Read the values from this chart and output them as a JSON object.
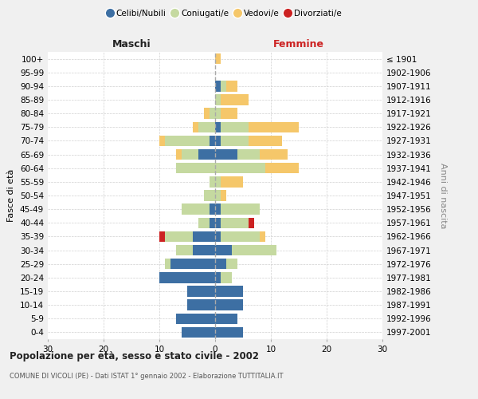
{
  "age_groups": [
    "0-4",
    "5-9",
    "10-14",
    "15-19",
    "20-24",
    "25-29",
    "30-34",
    "35-39",
    "40-44",
    "45-49",
    "50-54",
    "55-59",
    "60-64",
    "65-69",
    "70-74",
    "75-79",
    "80-84",
    "85-89",
    "90-94",
    "95-99",
    "100+"
  ],
  "birth_years": [
    "1997-2001",
    "1992-1996",
    "1987-1991",
    "1982-1986",
    "1977-1981",
    "1972-1976",
    "1967-1971",
    "1962-1966",
    "1957-1961",
    "1952-1956",
    "1947-1951",
    "1942-1946",
    "1937-1941",
    "1932-1936",
    "1927-1931",
    "1922-1926",
    "1917-1921",
    "1912-1916",
    "1907-1911",
    "1902-1906",
    "≤ 1901"
  ],
  "maschi": {
    "celibi": [
      6,
      7,
      5,
      5,
      10,
      8,
      4,
      4,
      1,
      1,
      0,
      0,
      0,
      3,
      1,
      0,
      0,
      0,
      0,
      0,
      0
    ],
    "coniugati": [
      0,
      0,
      0,
      0,
      0,
      1,
      3,
      5,
      2,
      5,
      2,
      1,
      7,
      3,
      8,
      3,
      1,
      0,
      0,
      0,
      0
    ],
    "vedovi": [
      0,
      0,
      0,
      0,
      0,
      0,
      0,
      0,
      0,
      0,
      0,
      0,
      0,
      1,
      1,
      1,
      1,
      0,
      0,
      0,
      0
    ],
    "divorziati": [
      0,
      0,
      0,
      0,
      0,
      0,
      0,
      1,
      0,
      0,
      0,
      0,
      0,
      0,
      0,
      0,
      0,
      0,
      0,
      0,
      0
    ]
  },
  "femmine": {
    "nubili": [
      5,
      4,
      5,
      5,
      1,
      2,
      3,
      1,
      1,
      1,
      0,
      0,
      0,
      4,
      1,
      1,
      0,
      0,
      1,
      0,
      0
    ],
    "coniugate": [
      0,
      0,
      0,
      0,
      2,
      2,
      8,
      7,
      5,
      7,
      1,
      1,
      9,
      4,
      5,
      5,
      1,
      1,
      1,
      0,
      0
    ],
    "vedove": [
      0,
      0,
      0,
      0,
      0,
      0,
      0,
      1,
      0,
      0,
      1,
      4,
      6,
      5,
      6,
      9,
      3,
      5,
      2,
      0,
      1
    ],
    "divorziate": [
      0,
      0,
      0,
      0,
      0,
      0,
      0,
      0,
      1,
      0,
      0,
      0,
      0,
      0,
      0,
      0,
      0,
      0,
      0,
      0,
      0
    ]
  },
  "colors": {
    "celibi": "#3d6fa3",
    "coniugati": "#c5d9a0",
    "vedovi": "#f5c76a",
    "divorziati": "#cc2222"
  },
  "xlim": 30,
  "title_main": "Popolazione per età, sesso e stato civile - 2002",
  "title_sub": "COMUNE DI VICOLI (PE) - Dati ISTAT 1° gennaio 2002 - Elaborazione TUTTITALIA.IT",
  "ylabel_left": "Fasce di età",
  "ylabel_right": "Anni di nascita",
  "label_maschi": "Maschi",
  "label_femmine": "Femmine",
  "legend_labels": [
    "Celibi/Nubili",
    "Coniugati/e",
    "Vedovi/e",
    "Divorziati/e"
  ],
  "bg_color": "#f0f0f0",
  "plot_bg": "#ffffff"
}
